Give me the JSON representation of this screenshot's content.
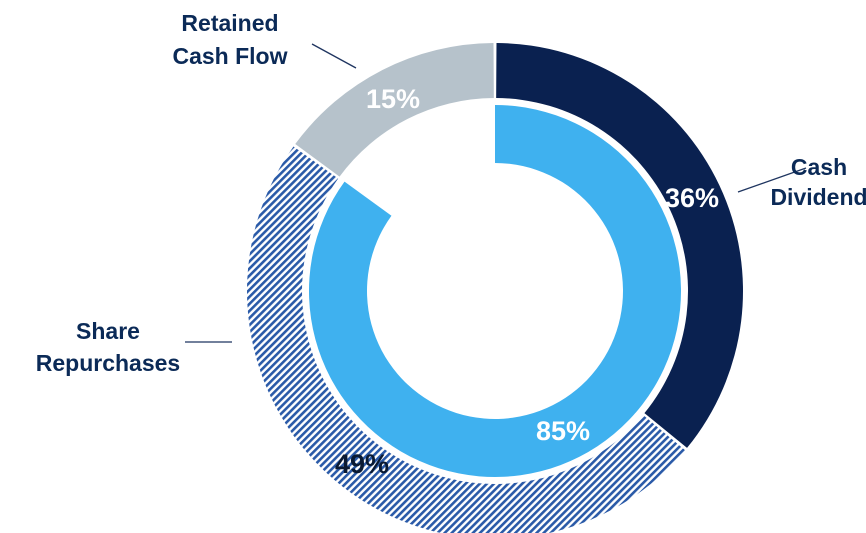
{
  "chart_data": {
    "type": "pie",
    "title": "",
    "outer_ring": {
      "slices": [
        {
          "label_lines": [
            "Cash",
            "Dividend"
          ],
          "value": 36,
          "value_label": "36%",
          "color": "#0a2150",
          "pattern": "solid",
          "value_label_color": "#ffffff"
        },
        {
          "label_lines": [
            "Share",
            "Repurchases"
          ],
          "value": 49,
          "value_label": "49%",
          "color": "#2a5aa8",
          "pattern": "diagonal-hatch",
          "value_label_color": "#0a1a33"
        },
        {
          "label_lines": [
            "Retained",
            "Cash Flow"
          ],
          "value": 15,
          "value_label": "15%",
          "color": "#b6c2cb",
          "pattern": "solid",
          "value_label_color": "#ffffff"
        }
      ]
    },
    "inner_ring": {
      "value": 85,
      "value_label": "85%",
      "color": "#3fb1ef",
      "value_label_color": "#ffffff"
    }
  }
}
